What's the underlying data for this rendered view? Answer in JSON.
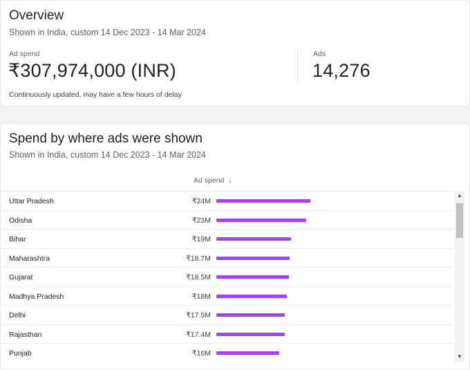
{
  "overview": {
    "title": "Overview",
    "subtitle": "Shown in India, custom 14 Dec 2023 - 14 Mar 2024",
    "ad_spend_label": "Ad spend",
    "ad_spend_value": "₹307,974,000 (INR)",
    "ads_label": "Ads",
    "ads_value": "14,276",
    "note": "Continuously updated, may have a few hours of delay"
  },
  "spend": {
    "title": "Spend by where ads were shown",
    "subtitle": "Shown in India, custom 14 Dec 2023 - 14 Mar 2024",
    "column_header": "Ad spend",
    "sort_icon": "arrow-down-icon",
    "bar_color": "#a142f4",
    "rows": [
      {
        "label": "Uttar Pradesh",
        "value_text": "₹24M",
        "value": 24
      },
      {
        "label": "Odisha",
        "value_text": "₹23M",
        "value": 23
      },
      {
        "label": "Bihar",
        "value_text": "₹19M",
        "value": 19
      },
      {
        "label": "Maharashtra",
        "value_text": "₹18.7M",
        "value": 18.7
      },
      {
        "label": "Gujarat",
        "value_text": "₹18.5M",
        "value": 18.5
      },
      {
        "label": "Madhya Pradesh",
        "value_text": "₹18M",
        "value": 18
      },
      {
        "label": "Delhi",
        "value_text": "₹17.5M",
        "value": 17.5
      },
      {
        "label": "Rajasthan",
        "value_text": "₹17.4M",
        "value": 17.4
      },
      {
        "label": "Punjab",
        "value_text": "₹16M",
        "value": 16
      }
    ]
  }
}
